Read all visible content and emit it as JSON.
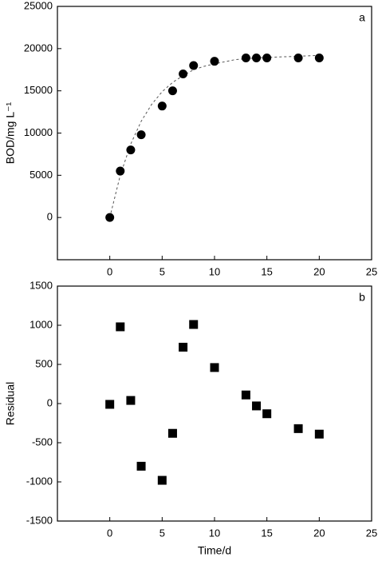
{
  "chart_data": [
    {
      "type": "scatter",
      "panel_label": "a",
      "y_label": "BOD/mg L⁻¹",
      "x": [
        0,
        1,
        2,
        3,
        5,
        6,
        7,
        8,
        10,
        13,
        14,
        15,
        18,
        20
      ],
      "values": [
        0,
        5500,
        8000,
        9800,
        13200,
        15000,
        17000,
        18000,
        18500,
        18900,
        18900,
        18900,
        18900,
        18900
      ],
      "marker": "circle",
      "color": "#000000",
      "fit": {
        "x": [
          0,
          1,
          2,
          3,
          4,
          5,
          6,
          7,
          8,
          9,
          10,
          12,
          14,
          16,
          18,
          20
        ],
        "values": [
          0,
          5000,
          8700,
          11400,
          13400,
          14900,
          16000,
          16800,
          17500,
          17900,
          18200,
          18700,
          18900,
          19000,
          19100,
          19200
        ],
        "color": "#555555",
        "dashed": true
      },
      "xlim": [
        -5,
        25
      ],
      "xticks": [
        0,
        5,
        10,
        15,
        20,
        25
      ],
      "ylim": [
        -5000,
        25000
      ],
      "yticks": [
        0,
        5000,
        10000,
        15000,
        20000,
        25000
      ]
    },
    {
      "type": "scatter",
      "panel_label": "b",
      "y_label": "Residual",
      "x_label": "Time/d",
      "x": [
        0,
        1,
        2,
        3,
        5,
        6,
        7,
        8,
        10,
        13,
        14,
        15,
        18,
        20
      ],
      "values": [
        -10,
        980,
        40,
        -800,
        -980,
        -380,
        720,
        1010,
        460,
        110,
        -30,
        -130,
        -320,
        -390
      ],
      "marker": "square",
      "color": "#000000",
      "xlim": [
        -5,
        25
      ],
      "xticks": [
        0,
        5,
        10,
        15,
        20,
        25
      ],
      "ylim": [
        -1500,
        1500
      ],
      "yticks": [
        -1500,
        -1000,
        -500,
        0,
        500,
        1000,
        1500
      ]
    }
  ]
}
